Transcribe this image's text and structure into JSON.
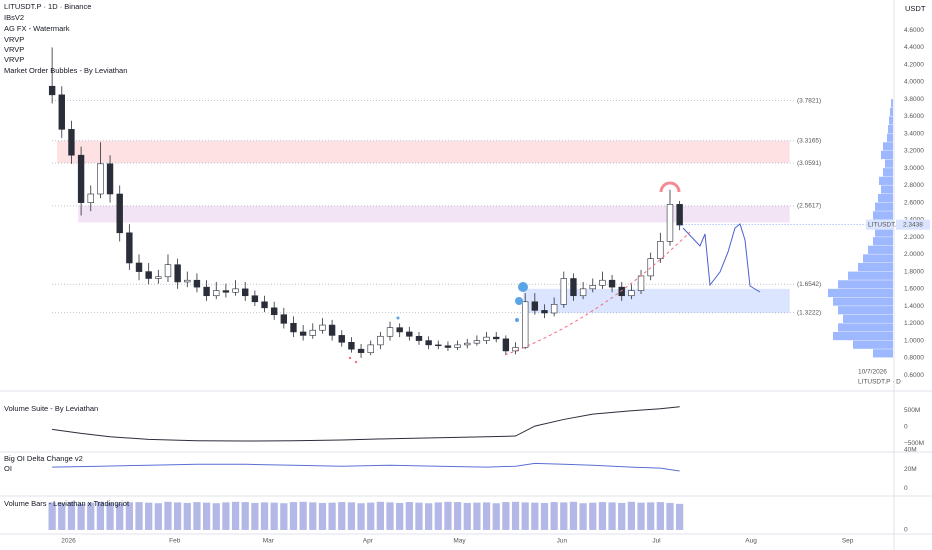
{
  "header": {
    "symbol": "LITUSDT.P · 1D · Binance",
    "indicators": [
      "IBsV2",
      "AG FX - Watermark",
      "VRVP",
      "VRVP",
      "VRVP",
      "Market Order Bubbles - By Leviathan"
    ],
    "currency": "USDT",
    "watermark_date": "10/7/2026",
    "watermark_symbol": "LITUSDT.P · D"
  },
  "chart_data": [
    {
      "type": "candlestick",
      "xlim": [
        -5.4,
        87.1
      ],
      "ylim": [
        0.45,
        4.95
      ],
      "xticks": [
        {
          "value": 1.7,
          "label": "2026"
        },
        {
          "value": 12.7,
          "label": "Feb"
        },
        {
          "value": 22.4,
          "label": "Mar"
        },
        {
          "value": 32.7,
          "label": "Apr"
        },
        {
          "value": 42.2,
          "label": "May"
        },
        {
          "value": 52.8,
          "label": "Jun"
        },
        {
          "value": 62.6,
          "label": "Jul"
        },
        {
          "value": 72.4,
          "label": "Aug"
        },
        {
          "value": 82.4,
          "label": "Sep"
        }
      ],
      "yticks": [
        {
          "value": 0.6,
          "label": "0.6000"
        },
        {
          "value": 0.8,
          "label": "0.8000"
        },
        {
          "value": 1,
          "label": "1.0000"
        },
        {
          "value": 1.2,
          "label": "1.2000"
        },
        {
          "value": 1.4,
          "label": "1.4000"
        },
        {
          "value": 1.6,
          "label": "1.6000"
        },
        {
          "value": 1.8,
          "label": "1.8000"
        },
        {
          "value": 2,
          "label": "2.0000"
        },
        {
          "value": 2.2,
          "label": "2.2000"
        },
        {
          "value": 2.4,
          "label": "2.4000"
        },
        {
          "value": 2.6,
          "label": "2.6000"
        },
        {
          "value": 2.8,
          "label": "2.8000"
        },
        {
          "value": 3,
          "label": "3.0000"
        },
        {
          "value": 3.2,
          "label": "3.2000"
        },
        {
          "value": 3.4,
          "label": "3.4000"
        },
        {
          "value": 3.6,
          "label": "3.6000"
        },
        {
          "value": 3.8,
          "label": "3.8000"
        },
        {
          "value": 4,
          "label": "4.0000"
        },
        {
          "value": 4.2,
          "label": "4.2000"
        },
        {
          "value": 4.4,
          "label": "4.4000"
        },
        {
          "value": 4.6,
          "label": "4.6000"
        }
      ],
      "up_color": "#ffffff",
      "down_color": "#2a2e39",
      "open": [
        3.95,
        3.85,
        3.45,
        3.15,
        2.6,
        2.7,
        3.05,
        2.7,
        2.25,
        1.9,
        1.8,
        1.72,
        1.74,
        1.88,
        1.68,
        1.7,
        1.62,
        1.52,
        1.58,
        1.56,
        1.6,
        1.52,
        1.45,
        1.38,
        1.3,
        1.2,
        1.1,
        1.06,
        1.12,
        1.18,
        1.06,
        0.98,
        0.9,
        0.86,
        0.95,
        1.05,
        1.15,
        1.1,
        1.05,
        1.0,
        0.95,
        0.94,
        0.92,
        0.95,
        0.97,
        1.0,
        1.04,
        1.02,
        0.88,
        0.92,
        1.45,
        1.35,
        1.32,
        1.42,
        1.72,
        1.52,
        1.6,
        1.64,
        1.7,
        1.62,
        1.52,
        1.58,
        1.75,
        1.95,
        2.15,
        2.58
      ],
      "high": [
        4.4,
        3.95,
        3.55,
        3.25,
        2.8,
        3.3,
        3.15,
        2.8,
        2.35,
        2.0,
        1.9,
        1.82,
        2.0,
        1.95,
        1.8,
        1.78,
        1.7,
        1.68,
        1.66,
        1.7,
        1.68,
        1.58,
        1.52,
        1.45,
        1.38,
        1.28,
        1.18,
        1.2,
        1.26,
        1.24,
        1.12,
        1.04,
        0.96,
        1.0,
        1.1,
        1.22,
        1.2,
        1.16,
        1.1,
        1.05,
        1.0,
        0.99,
        1.0,
        1.02,
        1.06,
        1.1,
        1.1,
        1.06,
        0.98,
        1.55,
        1.55,
        1.42,
        1.5,
        1.8,
        1.78,
        1.68,
        1.72,
        1.8,
        1.76,
        1.68,
        1.65,
        1.82,
        2.02,
        2.25,
        2.75,
        2.62
      ],
      "low": [
        3.75,
        3.35,
        3.05,
        2.45,
        2.5,
        2.65,
        2.6,
        2.15,
        1.82,
        1.7,
        1.65,
        1.66,
        1.68,
        1.6,
        1.62,
        1.56,
        1.46,
        1.48,
        1.5,
        1.52,
        1.46,
        1.4,
        1.33,
        1.24,
        1.14,
        1.04,
        1.0,
        1.02,
        1.08,
        1.0,
        0.93,
        0.86,
        0.8,
        0.83,
        0.9,
        1.0,
        1.04,
        1.0,
        0.95,
        0.9,
        0.9,
        0.88,
        0.89,
        0.91,
        0.94,
        0.96,
        0.98,
        0.84,
        0.84,
        0.9,
        1.3,
        1.26,
        1.28,
        1.38,
        1.46,
        1.48,
        1.56,
        1.6,
        1.56,
        1.46,
        1.48,
        1.54,
        1.7,
        1.9,
        2.1,
        2.28
      ],
      "close": [
        3.85,
        3.45,
        3.15,
        2.6,
        2.7,
        3.05,
        2.7,
        2.25,
        1.9,
        1.8,
        1.72,
        1.74,
        1.88,
        1.68,
        1.7,
        1.62,
        1.52,
        1.58,
        1.56,
        1.6,
        1.52,
        1.45,
        1.38,
        1.3,
        1.2,
        1.1,
        1.06,
        1.12,
        1.18,
        1.06,
        0.98,
        0.9,
        0.86,
        0.95,
        1.05,
        1.15,
        1.1,
        1.05,
        1.0,
        0.95,
        0.94,
        0.92,
        0.95,
        0.97,
        1.0,
        1.04,
        1.02,
        0.88,
        0.92,
        1.45,
        1.35,
        1.32,
        1.42,
        1.72,
        1.52,
        1.6,
        1.64,
        1.7,
        1.62,
        1.52,
        1.58,
        1.75,
        1.95,
        2.15,
        2.58,
        2.34
      ],
      "zones": [
        {
          "from": 0.5,
          "to": 76.4,
          "bottom": 3.0591,
          "top": 3.3165,
          "color": "rgba(242,54,69,0.15)"
        },
        {
          "from": 2.7,
          "to": 76.4,
          "bottom": 2.37,
          "top": 2.5617,
          "color": "rgba(156,39,176,0.13)"
        },
        {
          "from": 48.8,
          "to": 76.4,
          "bottom": 1.3222,
          "top": 1.6,
          "color": "rgba(41,98,255,0.17)"
        }
      ],
      "levels": [
        {
          "value": 3.7821,
          "label": "(3.7821)"
        },
        {
          "value": 3.3165,
          "label": "(3.3165)"
        },
        {
          "value": 3.0591,
          "label": "(3.0591)"
        },
        {
          "value": 2.5617,
          "label": "(2.5617)"
        },
        {
          "value": 1.6542,
          "label": "(1.6542)"
        },
        {
          "value": 1.3222,
          "label": "(1.3222)"
        }
      ],
      "price_tag": "LITUSDT.P",
      "last_price": 2.3438,
      "volume_profile": {
        "color": "rgba(41,98,255,0.45)",
        "xlim": [
          0,
          65
        ],
        "bins": [
          0.8,
          0.9,
          1.0,
          1.1,
          1.2,
          1.3,
          1.4,
          1.5,
          1.6,
          1.7,
          1.8,
          1.9,
          2.0,
          2.1,
          2.2,
          2.3,
          2.4,
          2.5,
          2.6,
          2.7,
          2.8,
          2.9,
          3.0,
          3.1,
          3.2,
          3.3,
          3.4,
          3.5,
          3.6,
          3.7,
          3.8
        ],
        "values": [
          20,
          40,
          60,
          55,
          50,
          55,
          60,
          65,
          55,
          45,
          35,
          30,
          25,
          20,
          18,
          25,
          20,
          18,
          15,
          12,
          14,
          10,
          8,
          12,
          10,
          6,
          5,
          4,
          3,
          2
        ]
      }
    },
    {
      "type": "line",
      "title": "Volume Suite - By Leviathan",
      "xlim": [
        -5.4,
        87.1
      ],
      "ylim": [
        -760,
        925
      ],
      "color": "#2a2e39",
      "yticks": [
        {
          "value": 500,
          "label": "500M"
        },
        0,
        {
          "value": -500,
          "label": "−500M"
        }
      ],
      "x": [
        0,
        3,
        6,
        10,
        15,
        20,
        25,
        30,
        35,
        40,
        45,
        48,
        50,
        53,
        56,
        60,
        63,
        65
      ],
      "values": [
        -80,
        -200,
        -300,
        -380,
        -420,
        -430,
        -420,
        -400,
        -360,
        -330,
        -300,
        -280,
        20,
        220,
        380,
        480,
        540,
        600
      ]
    },
    {
      "type": "line",
      "title": "Big OI Delta Change v2",
      "subtitle": "OI",
      "xlim": [
        -5.4,
        87.1
      ],
      "ylim": [
        -8,
        43
      ],
      "color": "#5a6fd6",
      "yticks": [
        {
          "value": 40,
          "label": "40M"
        },
        {
          "value": 20,
          "label": "20M"
        },
        0
      ],
      "x": [
        0,
        5,
        10,
        15,
        20,
        25,
        30,
        35,
        40,
        45,
        48,
        50,
        53,
        56,
        60,
        63,
        65
      ],
      "values": [
        22,
        23,
        24,
        25,
        25,
        24,
        23,
        24,
        23,
        22,
        23,
        26,
        25,
        24,
        22,
        21,
        18
      ]
    },
    {
      "type": "bar",
      "title": "Volume Bars - Leviathan x Tradingriot",
      "xlim": [
        -5.4,
        87.1
      ],
      "ylim": [
        0,
        110
      ],
      "color": "#b3b8e6",
      "yticks": [
        0
      ],
      "values": [
        95,
        92,
        96,
        90,
        94,
        97,
        93,
        91,
        95,
        96,
        94,
        92,
        97,
        95,
        93,
        96,
        94,
        92,
        95,
        97,
        96,
        93,
        95,
        94,
        92,
        96,
        97,
        95,
        93,
        94,
        96,
        95,
        92,
        94,
        97,
        95,
        93,
        96,
        94,
        92,
        95,
        97,
        96,
        93,
        94,
        95,
        92,
        96,
        97,
        95,
        94,
        93,
        96,
        95,
        97,
        92,
        94,
        96,
        95,
        93,
        97,
        94,
        95,
        96,
        93,
        90
      ]
    }
  ]
}
